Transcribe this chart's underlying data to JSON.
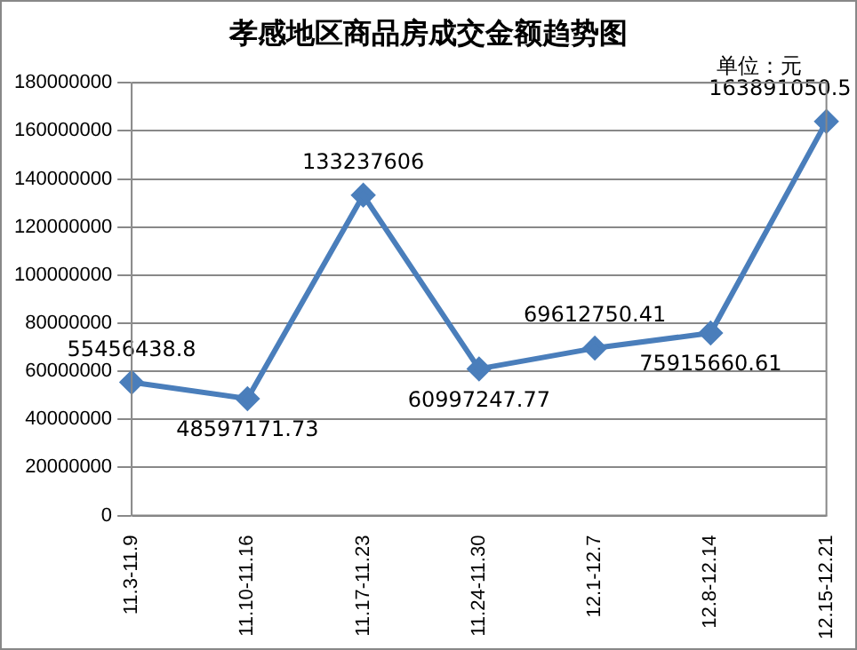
{
  "chart_data": {
    "type": "line",
    "title": "孝感地区商品房成交金额趋势图",
    "annotations": [
      "单位：元"
    ],
    "categories": [
      "11.3-11.9",
      "11.10-11.16",
      "11.17-11.23",
      "11.24-11.30",
      "12.1-12.7",
      "12.8-12.14",
      "12.15-12.21"
    ],
    "series": [
      {
        "color": "#4a7ebb",
        "values": [
          55456438.8,
          48597171.73,
          133237606,
          60997247.77,
          69612750.41,
          75915660.61,
          163891050.5
        ]
      }
    ],
    "ylim": [
      0,
      180000000
    ],
    "yticks": [
      0,
      20000000,
      40000000,
      60000000,
      80000000,
      100000000,
      120000000,
      140000000,
      160000000,
      180000000
    ],
    "grid": "y",
    "legend": false,
    "marker": "diamond",
    "line_style": "solid",
    "data_labels": true
  }
}
